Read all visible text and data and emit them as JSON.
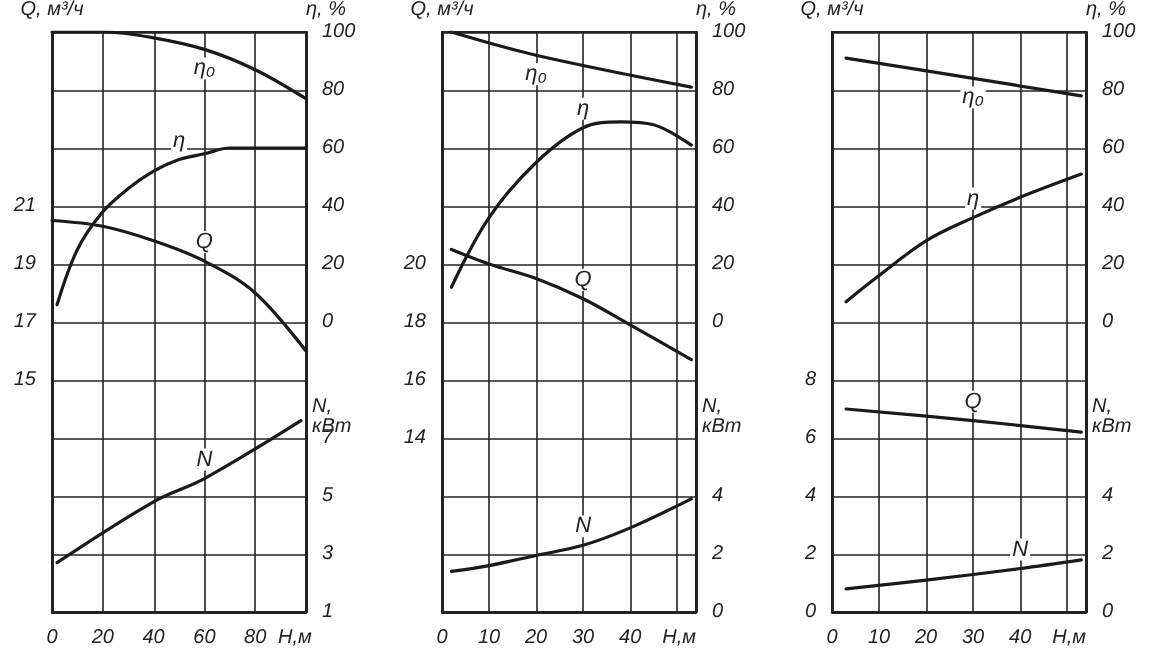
{
  "chart_data": [
    {
      "type": "line",
      "xlabel": "Н,м",
      "ylabel": "Q, м³/ч",
      "y2label": "η, %",
      "y3label": "N, кВт",
      "xlim": [
        0,
        100
      ],
      "xticks": [
        0,
        20,
        40,
        60,
        80
      ],
      "ylim": [
        7,
        27
      ],
      "yticks": [
        15,
        17,
        19,
        21
      ],
      "y2lim": [
        -100,
        100
      ],
      "y2ticks": [
        0,
        20,
        40,
        60,
        80,
        100
      ],
      "y3lim": [
        1,
        21
      ],
      "y3ticks": [
        1,
        3,
        5,
        7
      ],
      "grid": true,
      "marker": "none",
      "line_style": "solid",
      "series": [
        {
          "name": "η₀",
          "color": "#1a1a1a",
          "axis": "y2",
          "x": [
            0,
            20,
            40,
            60,
            80,
            100
          ],
          "values": [
            100,
            100,
            98,
            94,
            87,
            77
          ]
        },
        {
          "name": "η",
          "color": "#1a1a1a",
          "axis": "y2",
          "x": [
            2,
            10,
            20,
            30,
            40,
            50,
            60,
            70,
            80,
            100
          ],
          "values": [
            6,
            25,
            38,
            46,
            52,
            56,
            58,
            60,
            60,
            60
          ]
        },
        {
          "name": "Q",
          "color": "#1a1a1a",
          "axis": "y",
          "x": [
            0,
            20,
            40,
            60,
            80,
            100
          ],
          "values": [
            20.5,
            20.3,
            19.8,
            19.1,
            18,
            16
          ]
        },
        {
          "name": "N",
          "color": "#1a1a1a",
          "axis": "y3",
          "x": [
            2,
            40,
            60,
            98
          ],
          "values": [
            2.7,
            4.8,
            5.6,
            7.6
          ]
        }
      ]
    },
    {
      "type": "line",
      "xlabel": "Н,м",
      "ylabel": "Q, м³/ч",
      "y2label": "η, %",
      "y3label": "N, кВт",
      "xlim": [
        0,
        54
      ],
      "xticks": [
        0,
        10,
        20,
        30,
        40
      ],
      "ylim": [
        8,
        28
      ],
      "yticks": [
        14,
        16,
        18,
        20
      ],
      "y2lim": [
        -100,
        100
      ],
      "y2ticks": [
        0,
        20,
        40,
        60,
        80,
        100
      ],
      "y3lim": [
        0,
        20
      ],
      "y3ticks": [
        0,
        2,
        4
      ],
      "grid": true,
      "marker": "none",
      "line_style": "solid",
      "series": [
        {
          "name": "η₀",
          "color": "#1a1a1a",
          "axis": "y2",
          "x": [
            2,
            20,
            53
          ],
          "values": [
            100,
            92,
            81
          ]
        },
        {
          "name": "η",
          "color": "#1a1a1a",
          "axis": "y2",
          "x": [
            2,
            10,
            20,
            30,
            38,
            45,
            53
          ],
          "values": [
            12,
            36,
            55,
            67,
            69,
            68,
            61
          ]
        },
        {
          "name": "Q",
          "color": "#1a1a1a",
          "axis": "y",
          "x": [
            2,
            10,
            20,
            30,
            40,
            53
          ],
          "values": [
            20.5,
            20,
            19.5,
            18.8,
            17.9,
            16.7
          ]
        },
        {
          "name": "N",
          "color": "#1a1a1a",
          "axis": "y3",
          "x": [
            2,
            10,
            20,
            30,
            40,
            53
          ],
          "values": [
            1.4,
            1.6,
            1.95,
            2.3,
            2.9,
            3.9
          ]
        }
      ]
    },
    {
      "type": "line",
      "xlabel": "Н,м",
      "ylabel": "Q, м³/ч",
      "y2label": "η, %",
      "y3label": "N, кВт",
      "xlim": [
        0,
        54
      ],
      "xticks": [
        0,
        10,
        20,
        30,
        40
      ],
      "ylim": [
        0,
        20
      ],
      "yticks": [
        0,
        2,
        4,
        6,
        8
      ],
      "y2lim": [
        -100,
        100
      ],
      "y2ticks": [
        0,
        20,
        40,
        60,
        80,
        100
      ],
      "y3lim": [
        0,
        20
      ],
      "y3ticks": [
        0,
        2,
        4
      ],
      "grid": true,
      "marker": "none",
      "line_style": "solid",
      "series": [
        {
          "name": "η₀",
          "color": "#1a1a1a",
          "axis": "y2",
          "x": [
            3,
            30,
            53
          ],
          "values": [
            91,
            84,
            78
          ]
        },
        {
          "name": "η",
          "color": "#1a1a1a",
          "axis": "y2",
          "x": [
            3,
            10,
            20,
            30,
            40,
            53
          ],
          "values": [
            7,
            16,
            28,
            36,
            43,
            51
          ]
        },
        {
          "name": "Q",
          "color": "#1a1a1a",
          "axis": "y",
          "x": [
            3,
            30,
            53
          ],
          "values": [
            7,
            6.6,
            6.2
          ]
        },
        {
          "name": "N",
          "color": "#1a1a1a",
          "axis": "y3",
          "x": [
            3,
            20,
            40,
            53
          ],
          "values": [
            0.8,
            1.1,
            1.5,
            1.8
          ]
        }
      ]
    }
  ]
}
